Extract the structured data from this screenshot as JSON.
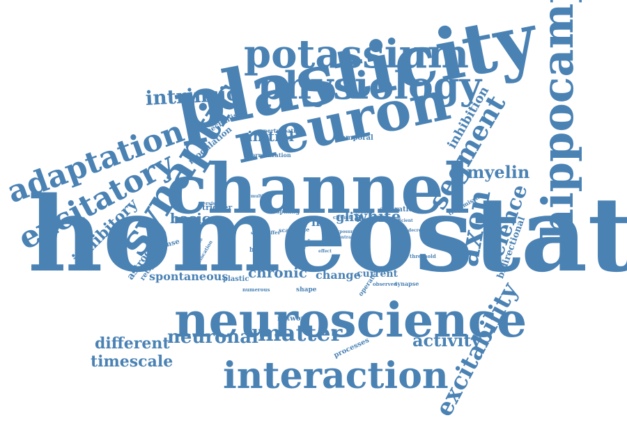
{
  "colors": {
    "word": "#4a82b4",
    "background": "#ffffff"
  },
  "words": [
    {
      "id": "homeostatic",
      "text": "homeostatic"
    },
    {
      "id": "channel",
      "text": "channel"
    },
    {
      "id": "plasticity",
      "text": "plasticity"
    },
    {
      "id": "neuron",
      "text": "neuron"
    },
    {
      "id": "neuroscience",
      "text": "neuroscience"
    },
    {
      "id": "hippocampal",
      "text": "hippocampal"
    },
    {
      "id": "potassium",
      "text": "potassium"
    },
    {
      "id": "physiology",
      "text": "physiology"
    },
    {
      "id": "synaptic",
      "text": "synaptic"
    },
    {
      "id": "interaction",
      "text": "interaction"
    },
    {
      "id": "adaptation",
      "text": "adaptation"
    },
    {
      "id": "excitatory",
      "text": "excitatory"
    },
    {
      "id": "segment",
      "text": "segment"
    },
    {
      "id": "axon",
      "text": "axon"
    },
    {
      "id": "science",
      "text": "science"
    },
    {
      "id": "excitability",
      "text": "excitability"
    },
    {
      "id": "intrinsic",
      "text": "intrinsic"
    },
    {
      "id": "myelin",
      "text": "myelin"
    },
    {
      "id": "inhibitory",
      "text": "inhibitory"
    },
    {
      "id": "neuronal",
      "text": "neuronal"
    },
    {
      "id": "matter",
      "text": "matter"
    },
    {
      "id": "activity",
      "text": "activity"
    },
    {
      "id": "different",
      "text": "different"
    },
    {
      "id": "timescale",
      "text": "timescale"
    },
    {
      "id": "white",
      "text": "white"
    },
    {
      "id": "basic",
      "text": "basic"
    },
    {
      "id": "chronic",
      "text": "chronic"
    },
    {
      "id": "initial",
      "text": "initial"
    },
    {
      "id": "inhibition",
      "text": "inhibition"
    },
    {
      "id": "spontaneous",
      "text": "spontaneous"
    },
    {
      "id": "change",
      "text": "change"
    },
    {
      "id": "glia",
      "text": "glia"
    },
    {
      "id": "life",
      "text": "life"
    },
    {
      "id": "astrocytic",
      "text": "astrocytic"
    },
    {
      "id": "bidirectional",
      "text": "bidirectional"
    },
    {
      "id": "current",
      "text": "current"
    },
    {
      "id": "modulation",
      "text": "modulation"
    },
    {
      "id": "mechanism",
      "text": "mechanism"
    },
    {
      "id": "response",
      "text": "response"
    },
    {
      "id": "trigger",
      "text": "trigger"
    },
    {
      "id": "retigabine",
      "text": "retigabine"
    },
    {
      "id": "temporal",
      "text": "temporal"
    },
    {
      "id": "plastic",
      "text": "plastic"
    },
    {
      "id": "processes",
      "text": "processes"
    },
    {
      "id": "network",
      "text": "network"
    },
    {
      "id": "brain",
      "text": "brain"
    },
    {
      "id": "shape",
      "text": "shape"
    },
    {
      "id": "operate",
      "text": "operate"
    },
    {
      "id": "alteration",
      "text": "alteration"
    },
    {
      "id": "normalization",
      "text": "normalization"
    },
    {
      "id": "perturbation",
      "text": "perturbation"
    },
    {
      "id": "spiking",
      "text": "spiking"
    },
    {
      "id": "transmission",
      "text": "transmission"
    },
    {
      "id": "scale",
      "text": "scale"
    },
    {
      "id": "rate",
      "text": "rate"
    },
    {
      "id": "persistent",
      "text": "persistent"
    },
    {
      "id": "multiple",
      "text": "multiple"
    },
    {
      "id": "numerous",
      "text": "numerous"
    },
    {
      "id": "threshold",
      "text": "threshold"
    },
    {
      "id": "circuit",
      "text": "circuit"
    },
    {
      "id": "synapse",
      "text": "synapse"
    },
    {
      "id": "observed",
      "text": "observed"
    },
    {
      "id": "relocation",
      "text": "relocation"
    },
    {
      "id": "modulate",
      "text": "modulate"
    },
    {
      "id": "decrease",
      "text": "decrease"
    },
    {
      "id": "sufficient",
      "text": "sufficient"
    },
    {
      "id": "cellular",
      "text": "cellular"
    },
    {
      "id": "exposure",
      "text": "exposure"
    },
    {
      "id": "contrast",
      "text": "contrast"
    },
    {
      "id": "result",
      "text": "result"
    },
    {
      "id": "studies",
      "text": "studies"
    },
    {
      "id": "differ",
      "text": "differ"
    },
    {
      "id": "effect",
      "text": "effect"
    },
    {
      "id": "shift",
      "text": "shift"
    },
    {
      "id": "regulate",
      "text": "regulate"
    },
    {
      "id": "face",
      "text": "face"
    }
  ]
}
